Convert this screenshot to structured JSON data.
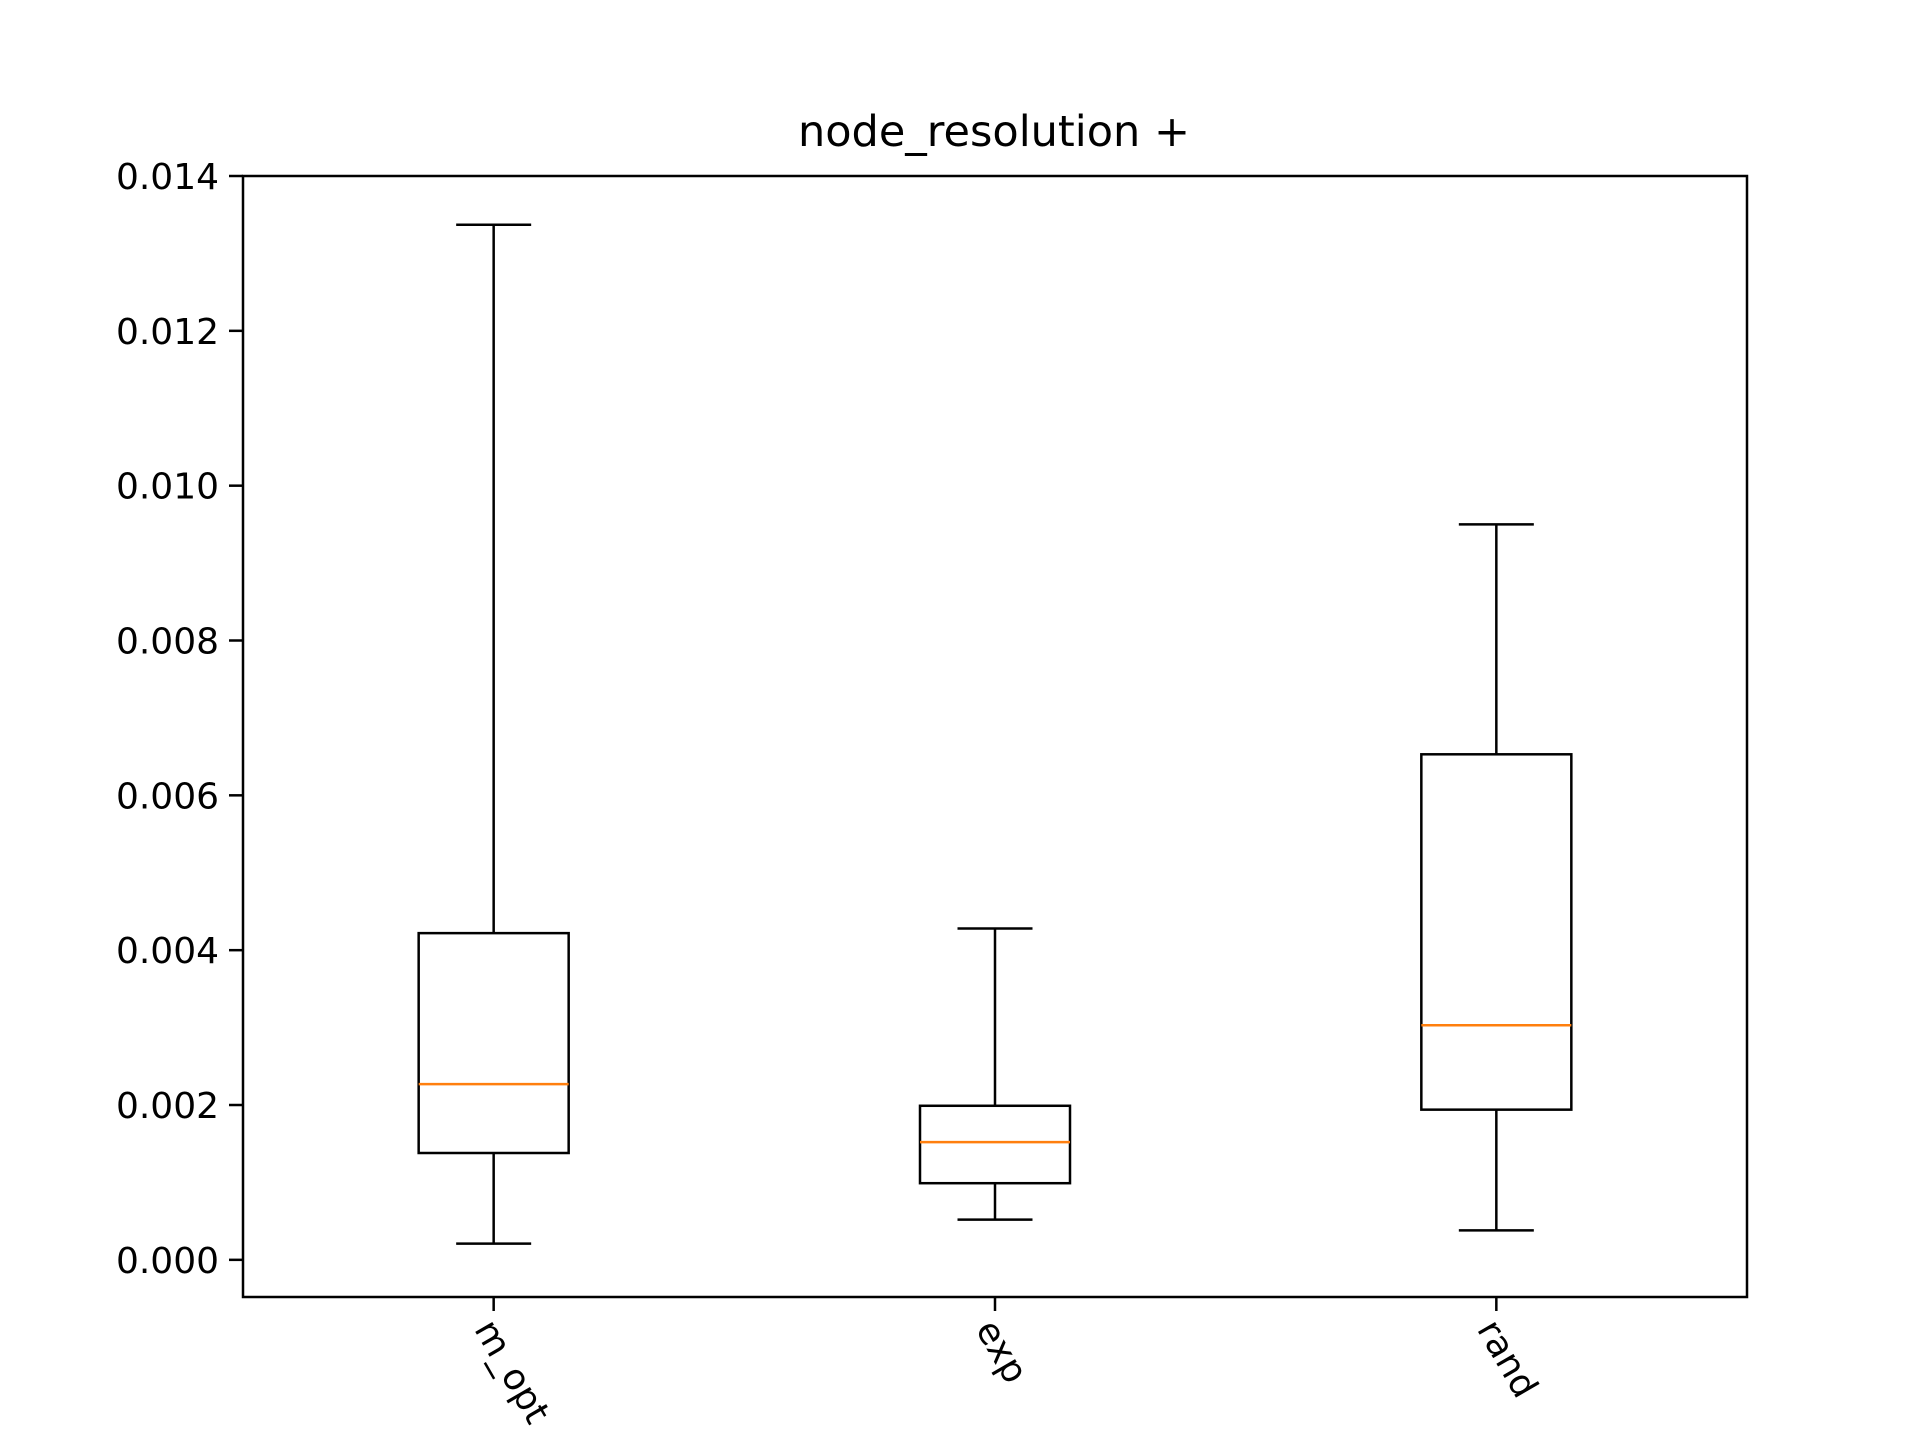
{
  "chart_data": {
    "type": "box",
    "title": "node_resolution +",
    "xlabel": "",
    "ylabel": "",
    "ylim": [
      -0.00048,
      0.014
    ],
    "yticks": [
      "0.000",
      "0.002",
      "0.004",
      "0.006",
      "0.008",
      "0.010",
      "0.012",
      "0.014"
    ],
    "ytick_values": [
      0.0,
      0.002,
      0.004,
      0.006,
      0.008,
      0.01,
      0.012,
      0.014
    ],
    "categories": [
      "m_opt",
      "exp",
      "rand"
    ],
    "boxes": [
      {
        "whisker_low": 0.00021,
        "q1": 0.00138,
        "median": 0.00227,
        "q3": 0.00422,
        "whisker_high": 0.01337
      },
      {
        "whisker_low": 0.00052,
        "q1": 0.00099,
        "median": 0.00152,
        "q3": 0.00199,
        "whisker_high": 0.00428
      },
      {
        "whisker_low": 0.00038,
        "q1": 0.00194,
        "median": 0.00303,
        "q3": 0.00653,
        "whisker_high": 0.0095
      }
    ],
    "grid": false,
    "legend": "none",
    "colors": {
      "box": "#000000",
      "median": "#ff7f0e",
      "axes": "#000000"
    }
  }
}
